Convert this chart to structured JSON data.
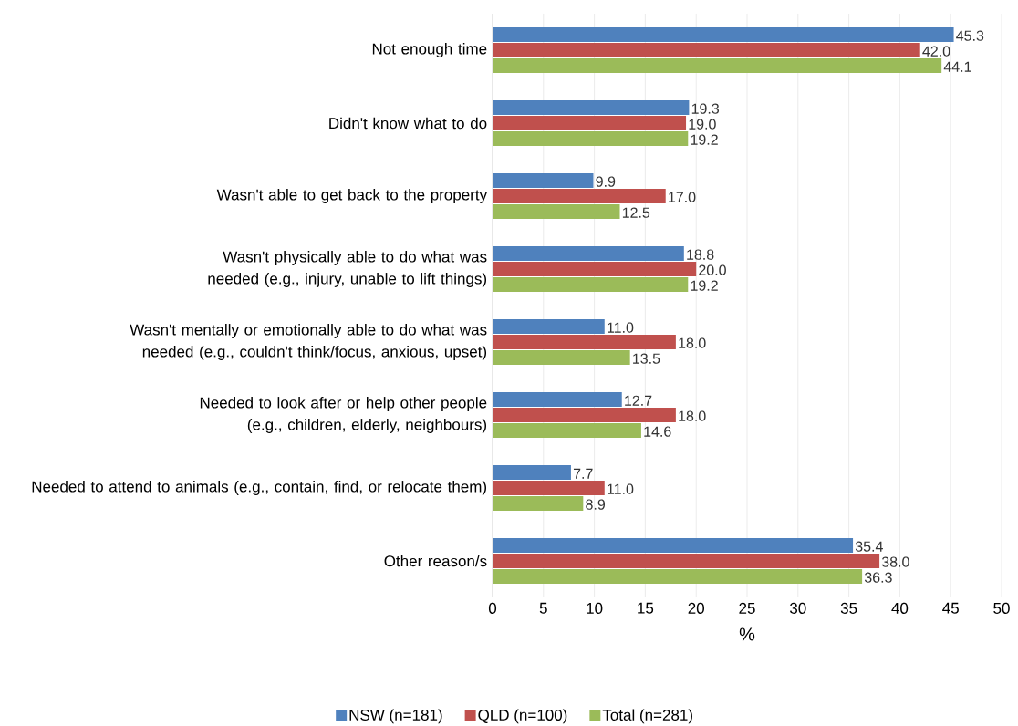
{
  "chart_data": {
    "type": "bar",
    "orientation": "horizontal",
    "xlabel": "%",
    "categories": [
      "Not enough time",
      "Didn't know what to do",
      "Wasn't able to get back to the property",
      "Wasn't physically able to do what was needed (e.g., injury, unable to lift things)",
      "Wasn't mentally or emotionally able to do what was needed (e.g., couldn't think/focus, anxious, upset)",
      "Needed to look after or help other people (e.g., children, elderly, neighbours)",
      "Needed to attend to animals (e.g., contain, find, or relocate them)",
      "Other reason/s"
    ],
    "series": [
      {
        "name": "NSW (n=181)",
        "color": "#4f81bd",
        "values": [
          45.3,
          19.3,
          9.9,
          18.8,
          11.0,
          12.7,
          7.7,
          35.4
        ],
        "value_labels": [
          "45.3",
          "19.3",
          "9.9",
          "18.8",
          "11.0",
          "12.7",
          "7.7",
          "35.4"
        ]
      },
      {
        "name": "QLD (n=100)",
        "color": "#c0504d",
        "values": [
          42.0,
          19.0,
          17.0,
          20.0,
          18.0,
          18.0,
          11.0,
          38.0
        ],
        "value_labels": [
          "42.0",
          "19.0",
          "17.0",
          "20.0",
          "18.0",
          "18.0",
          "11.0",
          "38.0"
        ]
      },
      {
        "name": "Total (n=281)",
        "color": "#9bbb59",
        "values": [
          44.1,
          19.2,
          12.5,
          19.2,
          13.5,
          14.6,
          8.9,
          36.3
        ],
        "value_labels": [
          "44.1",
          "19.2",
          "12.5",
          "19.2",
          "13.5",
          "14.6",
          "8.9",
          "36.3"
        ]
      }
    ],
    "xlim": [
      0,
      50
    ],
    "xticks": [
      0,
      5,
      10,
      15,
      20,
      25,
      30,
      35,
      40,
      45,
      50
    ],
    "grid": "x",
    "legend": "bottom"
  }
}
